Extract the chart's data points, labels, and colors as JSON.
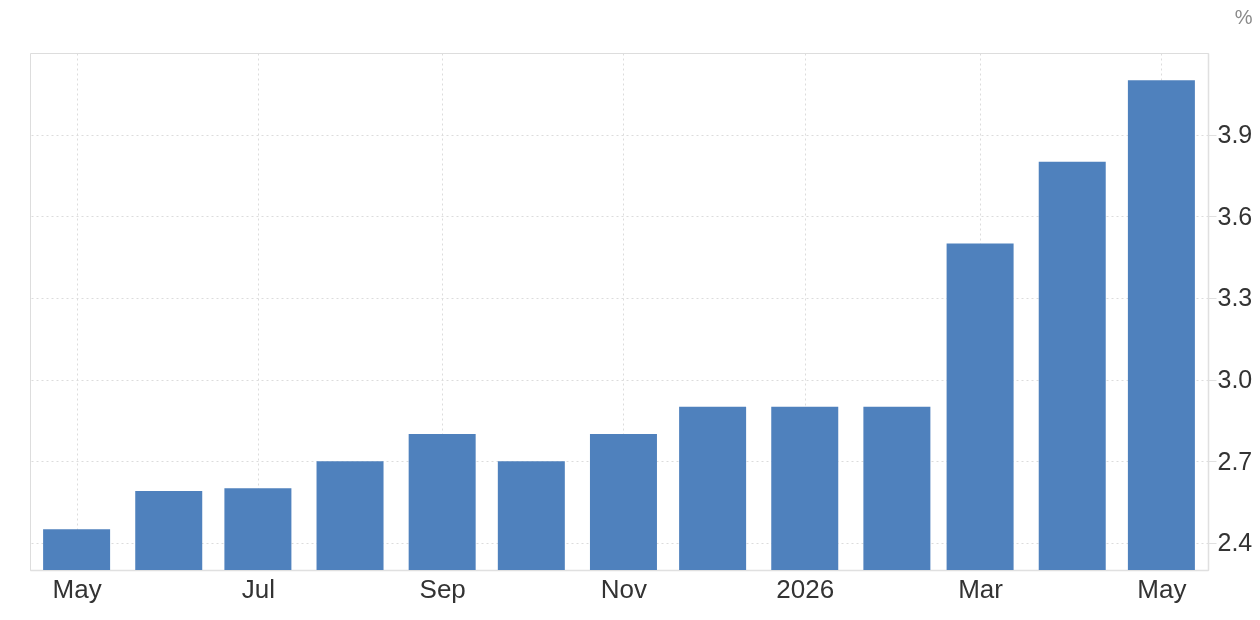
{
  "chart_data": {
    "type": "bar",
    "ylabel": "%",
    "x": [
      "2025-05",
      "2025-06",
      "2025-07",
      "2025-08",
      "2025-09",
      "2025-10",
      "2025-11",
      "2025-12",
      "2026-01",
      "2026-02",
      "2026-03",
      "2026-04",
      "2026-05"
    ],
    "values": [
      2.45,
      2.59,
      2.6,
      2.7,
      2.8,
      2.7,
      2.8,
      2.9,
      2.9,
      2.9,
      3.5,
      3.8,
      4.1
    ],
    "color": "#4f81bd",
    "xlim": [
      "2025-04-17",
      "2026-05-15"
    ],
    "xticks": [
      {
        "value": "2025-05",
        "label": "May"
      },
      {
        "value": "2025-07",
        "label": "Jul"
      },
      {
        "value": "2025-09",
        "label": "Sep"
      },
      {
        "value": "2025-11",
        "label": "Nov"
      },
      {
        "value": "2026-01",
        "label": "2026"
      },
      {
        "value": "2026-03",
        "label": "Mar"
      },
      {
        "value": "2026-05",
        "label": "May"
      }
    ],
    "ylim": [
      2.3,
      4.2
    ],
    "yticks": [
      2.4,
      2.7,
      {
        "value": 3,
        "label": "3.0"
      },
      3.3,
      3.6,
      3.9
    ],
    "grid": true
  }
}
